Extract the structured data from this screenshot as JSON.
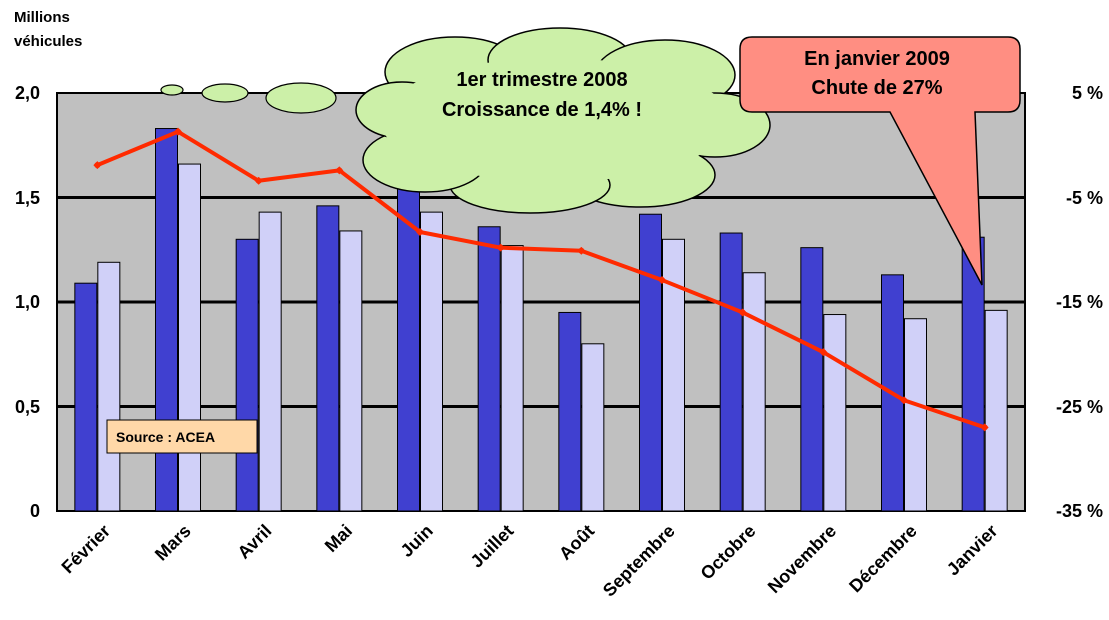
{
  "chart_data": {
    "type": "bar",
    "y_unit_label": [
      "Millions",
      "véhicules"
    ],
    "categories": [
      "Février",
      "Mars",
      "Avril",
      "Mai",
      "Juin",
      "Juillet",
      "Août",
      "Septembre",
      "Octobre",
      "Novembre",
      "Décembre",
      "Janvier"
    ],
    "series": [
      {
        "type": "bar",
        "axis": "left",
        "color": "#4040d0",
        "values": [
          1.09,
          1.83,
          1.3,
          1.46,
          1.55,
          1.36,
          0.95,
          1.42,
          1.33,
          1.26,
          1.13,
          1.31
        ]
      },
      {
        "type": "bar",
        "axis": "left",
        "color": "#d0d0f8",
        "values": [
          1.19,
          1.66,
          1.43,
          1.34,
          1.43,
          1.27,
          0.8,
          1.3,
          1.14,
          0.94,
          0.92,
          0.96
        ]
      },
      {
        "type": "line",
        "axis": "right",
        "color": "#ff2a00",
        "values": [
          -1.9,
          1.3,
          -3.4,
          -2.4,
          -8.3,
          -9.8,
          -10.1,
          -12.9,
          -16.0,
          -19.8,
          -24.4,
          -27.0
        ]
      }
    ],
    "y_left": {
      "range": [
        0,
        2.0
      ],
      "ticks": [
        "0",
        "0,5",
        "1,0",
        "1,5",
        "2,0"
      ]
    },
    "y_right": {
      "range": [
        -35,
        5
      ],
      "ticks": [
        "-35 %",
        "-25 %",
        "-15 %",
        "-5 %",
        "5 %"
      ]
    },
    "grid": true,
    "plot_background": "#c0c0c0",
    "source_label": "Source : ACEA",
    "annotations": {
      "cloud": [
        "1er trimestre 2008",
        "Croissance de 1,4% !"
      ],
      "callout": [
        "En janvier 2009",
        "Chute de 27%"
      ]
    }
  }
}
